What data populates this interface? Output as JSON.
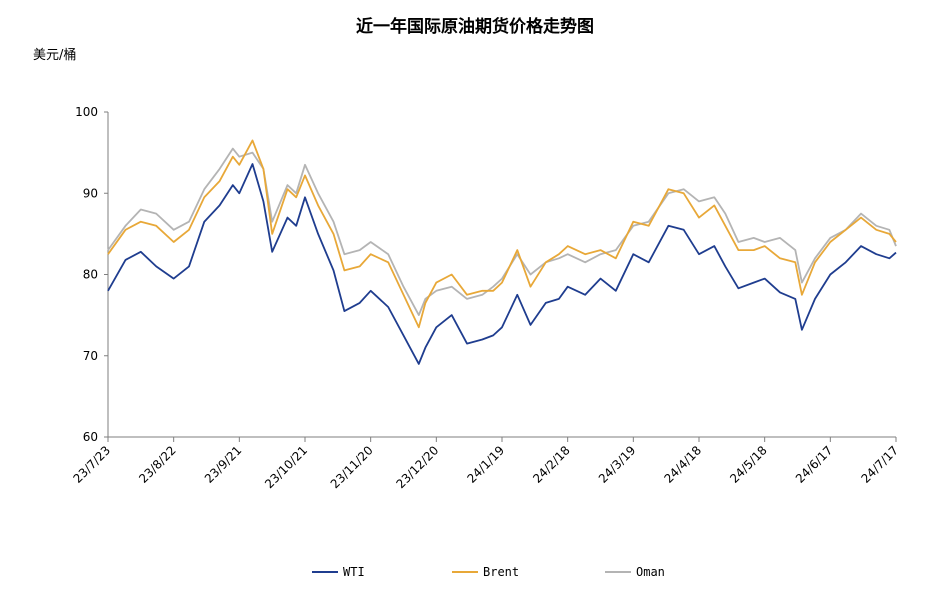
{
  "chart_data": {
    "type": "line",
    "title": "近一年国际原油期货价格走势图",
    "unit_label": "美元/桶",
    "xlabel": "",
    "ylabel": "美元/桶",
    "ylim": [
      60,
      100
    ],
    "yticks": [
      60,
      70,
      80,
      90,
      100
    ],
    "grid": false,
    "legend_position": "bottom",
    "x_start": "2023-07-23",
    "x_end": "2024-07-17",
    "x_tick_labels": [
      "23/7/23",
      "23/8/22",
      "23/9/21",
      "23/10/21",
      "23/11/20",
      "23/12/20",
      "24/1/19",
      "24/2/18",
      "24/3/19",
      "24/4/18",
      "24/5/18",
      "24/6/17",
      "24/7/17"
    ],
    "series": [
      {
        "name": "WTI",
        "color": "#1f3d8f",
        "points": [
          [
            "2023-07-23",
            78.0
          ],
          [
            "2023-07-31",
            81.8
          ],
          [
            "2023-08-07",
            82.8
          ],
          [
            "2023-08-14",
            81.0
          ],
          [
            "2023-08-22",
            79.5
          ],
          [
            "2023-08-29",
            81.0
          ],
          [
            "2023-09-05",
            86.5
          ],
          [
            "2023-09-12",
            88.5
          ],
          [
            "2023-09-18",
            91.0
          ],
          [
            "2023-09-21",
            90.0
          ],
          [
            "2023-09-27",
            93.6
          ],
          [
            "2023-10-02",
            89.0
          ],
          [
            "2023-10-06",
            82.8
          ],
          [
            "2023-10-13",
            87.0
          ],
          [
            "2023-10-17",
            86.0
          ],
          [
            "2023-10-21",
            89.5
          ],
          [
            "2023-10-27",
            85.0
          ],
          [
            "2023-11-03",
            80.5
          ],
          [
            "2023-11-08",
            75.5
          ],
          [
            "2023-11-15",
            76.5
          ],
          [
            "2023-11-20",
            78.0
          ],
          [
            "2023-11-28",
            76.0
          ],
          [
            "2023-12-05",
            72.5
          ],
          [
            "2023-12-12",
            69.0
          ],
          [
            "2023-12-15",
            71.0
          ],
          [
            "2023-12-20",
            73.5
          ],
          [
            "2023-12-27",
            75.0
          ],
          [
            "2024-01-03",
            71.5
          ],
          [
            "2024-01-10",
            72.0
          ],
          [
            "2024-01-15",
            72.5
          ],
          [
            "2024-01-19",
            73.5
          ],
          [
            "2024-01-26",
            77.5
          ],
          [
            "2024-02-01",
            73.8
          ],
          [
            "2024-02-08",
            76.5
          ],
          [
            "2024-02-14",
            77.0
          ],
          [
            "2024-02-18",
            78.5
          ],
          [
            "2024-02-26",
            77.5
          ],
          [
            "2024-03-04",
            79.5
          ],
          [
            "2024-03-11",
            78.0
          ],
          [
            "2024-03-19",
            82.5
          ],
          [
            "2024-03-26",
            81.5
          ],
          [
            "2024-04-04",
            86.0
          ],
          [
            "2024-04-11",
            85.5
          ],
          [
            "2024-04-18",
            82.5
          ],
          [
            "2024-04-25",
            83.5
          ],
          [
            "2024-04-30",
            81.0
          ],
          [
            "2024-05-06",
            78.3
          ],
          [
            "2024-05-13",
            79.0
          ],
          [
            "2024-05-18",
            79.5
          ],
          [
            "2024-05-25",
            77.8
          ],
          [
            "2024-06-01",
            77.0
          ],
          [
            "2024-06-04",
            73.2
          ],
          [
            "2024-06-10",
            77.0
          ],
          [
            "2024-06-17",
            80.0
          ],
          [
            "2024-06-24",
            81.5
          ],
          [
            "2024-07-01",
            83.5
          ],
          [
            "2024-07-08",
            82.5
          ],
          [
            "2024-07-14",
            82.0
          ],
          [
            "2024-07-17",
            82.7
          ]
        ]
      },
      {
        "name": "Brent",
        "color": "#e8a838",
        "points": [
          [
            "2023-07-23",
            82.5
          ],
          [
            "2023-07-31",
            85.5
          ],
          [
            "2023-08-07",
            86.5
          ],
          [
            "2023-08-14",
            86.0
          ],
          [
            "2023-08-22",
            84.0
          ],
          [
            "2023-08-29",
            85.5
          ],
          [
            "2023-09-05",
            89.5
          ],
          [
            "2023-09-12",
            91.5
          ],
          [
            "2023-09-18",
            94.5
          ],
          [
            "2023-09-21",
            93.5
          ],
          [
            "2023-09-27",
            96.5
          ],
          [
            "2023-10-02",
            93.0
          ],
          [
            "2023-10-06",
            85.0
          ],
          [
            "2023-10-13",
            90.5
          ],
          [
            "2023-10-17",
            89.5
          ],
          [
            "2023-10-21",
            92.2
          ],
          [
            "2023-10-27",
            88.5
          ],
          [
            "2023-11-03",
            85.0
          ],
          [
            "2023-11-08",
            80.5
          ],
          [
            "2023-11-15",
            81.0
          ],
          [
            "2023-11-20",
            82.5
          ],
          [
            "2023-11-28",
            81.5
          ],
          [
            "2023-12-05",
            77.5
          ],
          [
            "2023-12-12",
            73.5
          ],
          [
            "2023-12-15",
            76.5
          ],
          [
            "2023-12-20",
            79.0
          ],
          [
            "2023-12-27",
            80.0
          ],
          [
            "2024-01-03",
            77.5
          ],
          [
            "2024-01-10",
            78.0
          ],
          [
            "2024-01-15",
            78.0
          ],
          [
            "2024-01-19",
            79.0
          ],
          [
            "2024-01-26",
            83.0
          ],
          [
            "2024-02-01",
            78.5
          ],
          [
            "2024-02-08",
            81.5
          ],
          [
            "2024-02-14",
            82.5
          ],
          [
            "2024-02-18",
            83.5
          ],
          [
            "2024-02-26",
            82.5
          ],
          [
            "2024-03-04",
            83.0
          ],
          [
            "2024-03-11",
            82.0
          ],
          [
            "2024-03-19",
            86.5
          ],
          [
            "2024-03-26",
            86.0
          ],
          [
            "2024-04-04",
            90.5
          ],
          [
            "2024-04-11",
            90.0
          ],
          [
            "2024-04-18",
            87.0
          ],
          [
            "2024-04-25",
            88.5
          ],
          [
            "2024-04-30",
            86.0
          ],
          [
            "2024-05-06",
            83.0
          ],
          [
            "2024-05-13",
            83.0
          ],
          [
            "2024-05-18",
            83.5
          ],
          [
            "2024-05-25",
            82.0
          ],
          [
            "2024-06-01",
            81.5
          ],
          [
            "2024-06-04",
            77.5
          ],
          [
            "2024-06-10",
            81.5
          ],
          [
            "2024-06-17",
            84.0
          ],
          [
            "2024-06-24",
            85.5
          ],
          [
            "2024-07-01",
            87.0
          ],
          [
            "2024-07-08",
            85.5
          ],
          [
            "2024-07-14",
            85.0
          ],
          [
            "2024-07-17",
            84.0
          ]
        ]
      },
      {
        "name": "Oman",
        "color": "#b4b4b4",
        "points": [
          [
            "2023-07-23",
            83.0
          ],
          [
            "2023-07-31",
            86.0
          ],
          [
            "2023-08-07",
            88.0
          ],
          [
            "2023-08-14",
            87.5
          ],
          [
            "2023-08-22",
            85.5
          ],
          [
            "2023-08-29",
            86.5
          ],
          [
            "2023-09-05",
            90.5
          ],
          [
            "2023-09-12",
            93.0
          ],
          [
            "2023-09-18",
            95.5
          ],
          [
            "2023-09-21",
            94.5
          ],
          [
            "2023-09-27",
            95.0
          ],
          [
            "2023-10-02",
            93.0
          ],
          [
            "2023-10-06",
            86.5
          ],
          [
            "2023-10-13",
            91.0
          ],
          [
            "2023-10-17",
            90.0
          ],
          [
            "2023-10-21",
            93.5
          ],
          [
            "2023-10-27",
            90.0
          ],
          [
            "2023-11-03",
            86.5
          ],
          [
            "2023-11-08",
            82.5
          ],
          [
            "2023-11-15",
            83.0
          ],
          [
            "2023-11-20",
            84.0
          ],
          [
            "2023-11-28",
            82.5
          ],
          [
            "2023-12-05",
            78.5
          ],
          [
            "2023-12-12",
            75.0
          ],
          [
            "2023-12-15",
            77.0
          ],
          [
            "2023-12-20",
            78.0
          ],
          [
            "2023-12-27",
            78.5
          ],
          [
            "2024-01-03",
            77.0
          ],
          [
            "2024-01-10",
            77.5
          ],
          [
            "2024-01-15",
            78.5
          ],
          [
            "2024-01-19",
            79.5
          ],
          [
            "2024-01-26",
            82.5
          ],
          [
            "2024-02-01",
            80.0
          ],
          [
            "2024-02-08",
            81.5
          ],
          [
            "2024-02-14",
            82.0
          ],
          [
            "2024-02-18",
            82.5
          ],
          [
            "2024-02-26",
            81.5
          ],
          [
            "2024-03-04",
            82.5
          ],
          [
            "2024-03-11",
            83.0
          ],
          [
            "2024-03-19",
            86.0
          ],
          [
            "2024-03-26",
            86.5
          ],
          [
            "2024-04-04",
            90.0
          ],
          [
            "2024-04-11",
            90.5
          ],
          [
            "2024-04-18",
            89.0
          ],
          [
            "2024-04-25",
            89.5
          ],
          [
            "2024-04-30",
            87.5
          ],
          [
            "2024-05-06",
            84.0
          ],
          [
            "2024-05-13",
            84.5
          ],
          [
            "2024-05-18",
            84.0
          ],
          [
            "2024-05-25",
            84.5
          ],
          [
            "2024-06-01",
            83.0
          ],
          [
            "2024-06-04",
            79.0
          ],
          [
            "2024-06-10",
            82.0
          ],
          [
            "2024-06-17",
            84.5
          ],
          [
            "2024-06-24",
            85.5
          ],
          [
            "2024-07-01",
            87.5
          ],
          [
            "2024-07-08",
            86.0
          ],
          [
            "2024-07-14",
            85.5
          ],
          [
            "2024-07-17",
            83.5
          ]
        ]
      }
    ]
  }
}
